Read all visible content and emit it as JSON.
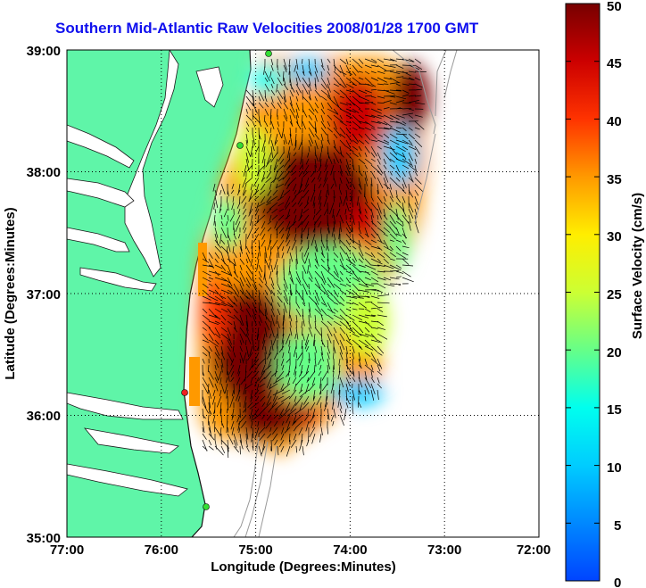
{
  "title": "Southern Mid-Atlantic Raw Velocities 2008/01/28 1700 GMT",
  "x_axis": {
    "label": "Longitude (Degrees:Minutes)",
    "ticks": [
      "77:00",
      "76:00",
      "75:00",
      "74:00",
      "73:00",
      "72:00"
    ]
  },
  "y_axis": {
    "label": "Latitude (Degrees:Minutes)",
    "ticks": [
      "39:00",
      "38:00",
      "37:00",
      "36:00",
      "35:00"
    ]
  },
  "colorbar": {
    "label": "Surface Velocity (cm/s)",
    "ticks": [
      "50",
      "45",
      "40",
      "35",
      "30",
      "25",
      "20",
      "15",
      "10",
      "5",
      "0"
    ],
    "range": [
      0,
      50
    ]
  },
  "colors": {
    "land": "#5ff5a8",
    "title": "#1010ee",
    "station_green": "#33dd33",
    "station_red": "#ee2222"
  },
  "chart_data": {
    "type": "heatmap",
    "title": "Southern Mid-Atlantic Raw Velocities 2008/01/28 1700 GMT",
    "xlabel": "Longitude (Degrees:Minutes)",
    "ylabel": "Latitude (Degrees:Minutes)",
    "xlim": [
      "77:00",
      "72:00"
    ],
    "ylim": [
      "35:00",
      "39:00"
    ],
    "colorbar_label": "Surface Velocity (cm/s)",
    "colorbar_range": [
      0,
      50
    ],
    "grid": true
  }
}
